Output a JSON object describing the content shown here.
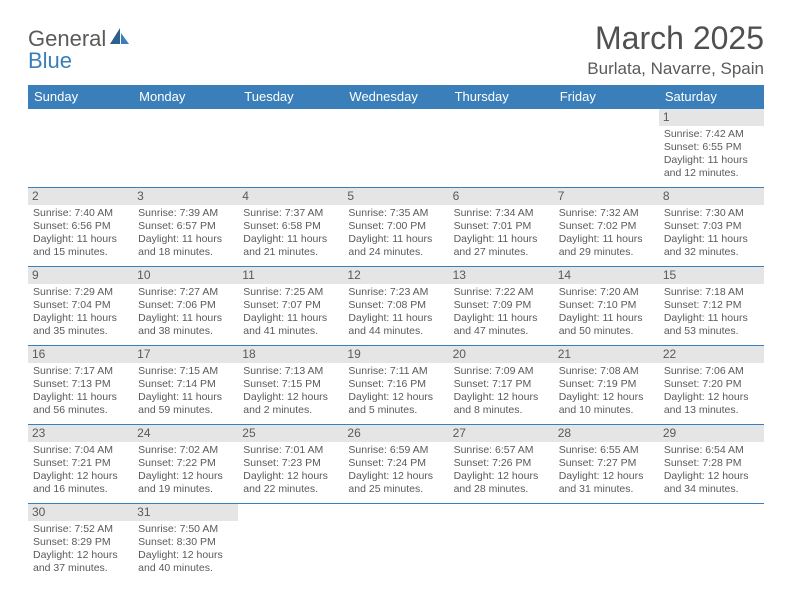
{
  "brand": {
    "part1": "General",
    "part2": "Blue"
  },
  "title": "March 2025",
  "location": "Burlata, Navarre, Spain",
  "colors": {
    "header_bg": "#3a7fba",
    "border": "#3a7fba",
    "daynum_bg": "#e5e5e5",
    "text": "#5a5a5a"
  },
  "weekdays": [
    "Sunday",
    "Monday",
    "Tuesday",
    "Wednesday",
    "Thursday",
    "Friday",
    "Saturday"
  ],
  "weeks": [
    [
      null,
      null,
      null,
      null,
      null,
      null,
      {
        "n": "1",
        "sr": "Sunrise: 7:42 AM",
        "ss": "Sunset: 6:55 PM",
        "d1": "Daylight: 11 hours",
        "d2": "and 12 minutes."
      }
    ],
    [
      {
        "n": "2",
        "sr": "Sunrise: 7:40 AM",
        "ss": "Sunset: 6:56 PM",
        "d1": "Daylight: 11 hours",
        "d2": "and 15 minutes."
      },
      {
        "n": "3",
        "sr": "Sunrise: 7:39 AM",
        "ss": "Sunset: 6:57 PM",
        "d1": "Daylight: 11 hours",
        "d2": "and 18 minutes."
      },
      {
        "n": "4",
        "sr": "Sunrise: 7:37 AM",
        "ss": "Sunset: 6:58 PM",
        "d1": "Daylight: 11 hours",
        "d2": "and 21 minutes."
      },
      {
        "n": "5",
        "sr": "Sunrise: 7:35 AM",
        "ss": "Sunset: 7:00 PM",
        "d1": "Daylight: 11 hours",
        "d2": "and 24 minutes."
      },
      {
        "n": "6",
        "sr": "Sunrise: 7:34 AM",
        "ss": "Sunset: 7:01 PM",
        "d1": "Daylight: 11 hours",
        "d2": "and 27 minutes."
      },
      {
        "n": "7",
        "sr": "Sunrise: 7:32 AM",
        "ss": "Sunset: 7:02 PM",
        "d1": "Daylight: 11 hours",
        "d2": "and 29 minutes."
      },
      {
        "n": "8",
        "sr": "Sunrise: 7:30 AM",
        "ss": "Sunset: 7:03 PM",
        "d1": "Daylight: 11 hours",
        "d2": "and 32 minutes."
      }
    ],
    [
      {
        "n": "9",
        "sr": "Sunrise: 7:29 AM",
        "ss": "Sunset: 7:04 PM",
        "d1": "Daylight: 11 hours",
        "d2": "and 35 minutes."
      },
      {
        "n": "10",
        "sr": "Sunrise: 7:27 AM",
        "ss": "Sunset: 7:06 PM",
        "d1": "Daylight: 11 hours",
        "d2": "and 38 minutes."
      },
      {
        "n": "11",
        "sr": "Sunrise: 7:25 AM",
        "ss": "Sunset: 7:07 PM",
        "d1": "Daylight: 11 hours",
        "d2": "and 41 minutes."
      },
      {
        "n": "12",
        "sr": "Sunrise: 7:23 AM",
        "ss": "Sunset: 7:08 PM",
        "d1": "Daylight: 11 hours",
        "d2": "and 44 minutes."
      },
      {
        "n": "13",
        "sr": "Sunrise: 7:22 AM",
        "ss": "Sunset: 7:09 PM",
        "d1": "Daylight: 11 hours",
        "d2": "and 47 minutes."
      },
      {
        "n": "14",
        "sr": "Sunrise: 7:20 AM",
        "ss": "Sunset: 7:10 PM",
        "d1": "Daylight: 11 hours",
        "d2": "and 50 minutes."
      },
      {
        "n": "15",
        "sr": "Sunrise: 7:18 AM",
        "ss": "Sunset: 7:12 PM",
        "d1": "Daylight: 11 hours",
        "d2": "and 53 minutes."
      }
    ],
    [
      {
        "n": "16",
        "sr": "Sunrise: 7:17 AM",
        "ss": "Sunset: 7:13 PM",
        "d1": "Daylight: 11 hours",
        "d2": "and 56 minutes."
      },
      {
        "n": "17",
        "sr": "Sunrise: 7:15 AM",
        "ss": "Sunset: 7:14 PM",
        "d1": "Daylight: 11 hours",
        "d2": "and 59 minutes."
      },
      {
        "n": "18",
        "sr": "Sunrise: 7:13 AM",
        "ss": "Sunset: 7:15 PM",
        "d1": "Daylight: 12 hours",
        "d2": "and 2 minutes."
      },
      {
        "n": "19",
        "sr": "Sunrise: 7:11 AM",
        "ss": "Sunset: 7:16 PM",
        "d1": "Daylight: 12 hours",
        "d2": "and 5 minutes."
      },
      {
        "n": "20",
        "sr": "Sunrise: 7:09 AM",
        "ss": "Sunset: 7:17 PM",
        "d1": "Daylight: 12 hours",
        "d2": "and 8 minutes."
      },
      {
        "n": "21",
        "sr": "Sunrise: 7:08 AM",
        "ss": "Sunset: 7:19 PM",
        "d1": "Daylight: 12 hours",
        "d2": "and 10 minutes."
      },
      {
        "n": "22",
        "sr": "Sunrise: 7:06 AM",
        "ss": "Sunset: 7:20 PM",
        "d1": "Daylight: 12 hours",
        "d2": "and 13 minutes."
      }
    ],
    [
      {
        "n": "23",
        "sr": "Sunrise: 7:04 AM",
        "ss": "Sunset: 7:21 PM",
        "d1": "Daylight: 12 hours",
        "d2": "and 16 minutes."
      },
      {
        "n": "24",
        "sr": "Sunrise: 7:02 AM",
        "ss": "Sunset: 7:22 PM",
        "d1": "Daylight: 12 hours",
        "d2": "and 19 minutes."
      },
      {
        "n": "25",
        "sr": "Sunrise: 7:01 AM",
        "ss": "Sunset: 7:23 PM",
        "d1": "Daylight: 12 hours",
        "d2": "and 22 minutes."
      },
      {
        "n": "26",
        "sr": "Sunrise: 6:59 AM",
        "ss": "Sunset: 7:24 PM",
        "d1": "Daylight: 12 hours",
        "d2": "and 25 minutes."
      },
      {
        "n": "27",
        "sr": "Sunrise: 6:57 AM",
        "ss": "Sunset: 7:26 PM",
        "d1": "Daylight: 12 hours",
        "d2": "and 28 minutes."
      },
      {
        "n": "28",
        "sr": "Sunrise: 6:55 AM",
        "ss": "Sunset: 7:27 PM",
        "d1": "Daylight: 12 hours",
        "d2": "and 31 minutes."
      },
      {
        "n": "29",
        "sr": "Sunrise: 6:54 AM",
        "ss": "Sunset: 7:28 PM",
        "d1": "Daylight: 12 hours",
        "d2": "and 34 minutes."
      }
    ],
    [
      {
        "n": "30",
        "sr": "Sunrise: 7:52 AM",
        "ss": "Sunset: 8:29 PM",
        "d1": "Daylight: 12 hours",
        "d2": "and 37 minutes."
      },
      {
        "n": "31",
        "sr": "Sunrise: 7:50 AM",
        "ss": "Sunset: 8:30 PM",
        "d1": "Daylight: 12 hours",
        "d2": "and 40 minutes."
      },
      null,
      null,
      null,
      null,
      null
    ]
  ]
}
